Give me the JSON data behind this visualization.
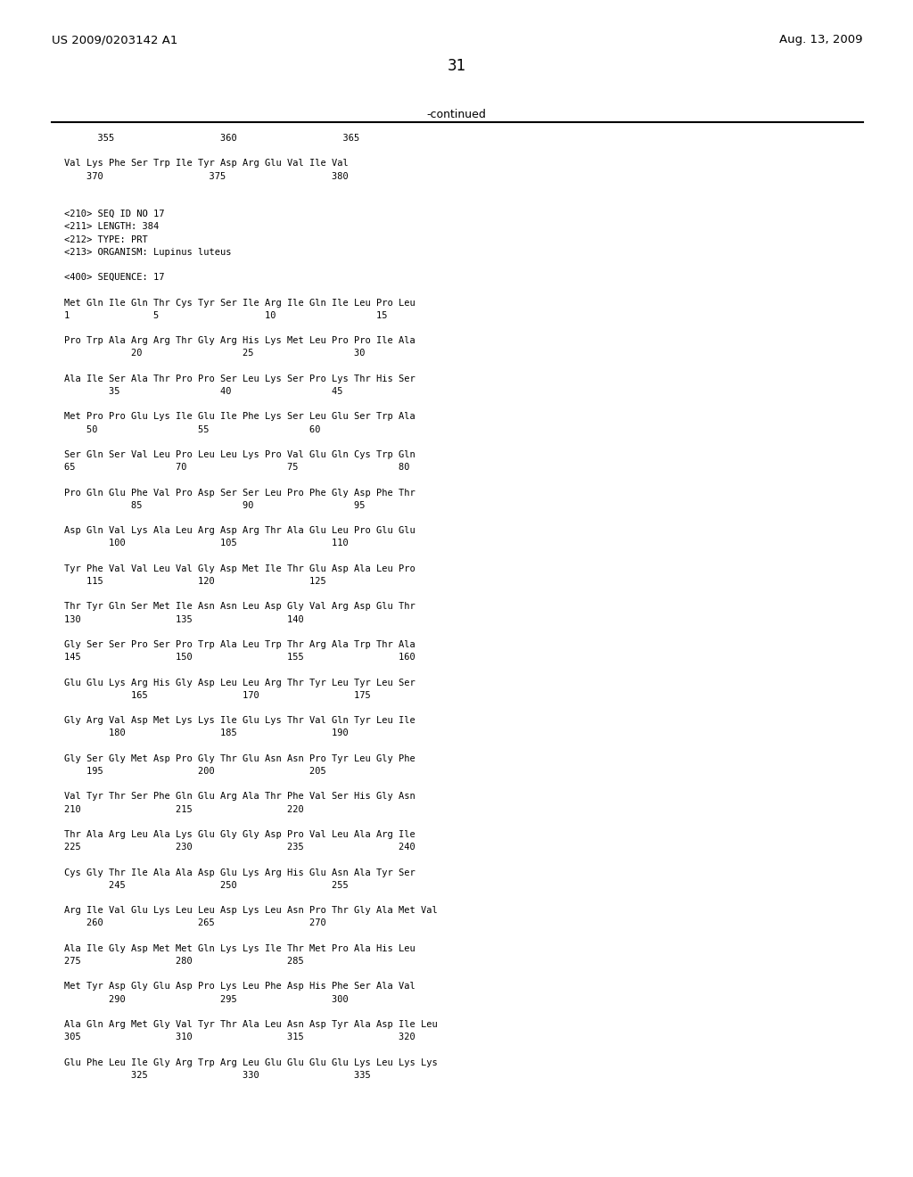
{
  "header_left": "US 2009/0203142 A1",
  "header_right": "Aug. 13, 2009",
  "page_number": "31",
  "continued_label": "-continued",
  "background_color": "#ffffff",
  "text_color": "#000000",
  "lines": [
    "      355                   360                   365",
    "",
    "Val Lys Phe Ser Trp Ile Tyr Asp Arg Glu Val Ile Val",
    "    370                   375                   380",
    "",
    "",
    "<210> SEQ ID NO 17",
    "<211> LENGTH: 384",
    "<212> TYPE: PRT",
    "<213> ORGANISM: Lupinus luteus",
    "",
    "<400> SEQUENCE: 17",
    "",
    "Met Gln Ile Gln Thr Cys Tyr Ser Ile Arg Ile Gln Ile Leu Pro Leu",
    "1               5                   10                  15",
    "",
    "Pro Trp Ala Arg Arg Thr Gly Arg His Lys Met Leu Pro Pro Ile Ala",
    "            20                  25                  30",
    "",
    "Ala Ile Ser Ala Thr Pro Pro Ser Leu Lys Ser Pro Lys Thr His Ser",
    "        35                  40                  45",
    "",
    "Met Pro Pro Glu Lys Ile Glu Ile Phe Lys Ser Leu Glu Ser Trp Ala",
    "    50                  55                  60",
    "",
    "Ser Gln Ser Val Leu Pro Leu Leu Lys Pro Val Glu Gln Cys Trp Gln",
    "65                  70                  75                  80",
    "",
    "Pro Gln Glu Phe Val Pro Asp Ser Ser Leu Pro Phe Gly Asp Phe Thr",
    "            85                  90                  95",
    "",
    "Asp Gln Val Lys Ala Leu Arg Asp Arg Thr Ala Glu Leu Pro Glu Glu",
    "        100                 105                 110",
    "",
    "Tyr Phe Val Val Leu Val Gly Asp Met Ile Thr Glu Asp Ala Leu Pro",
    "    115                 120                 125",
    "",
    "Thr Tyr Gln Ser Met Ile Asn Asn Leu Asp Gly Val Arg Asp Glu Thr",
    "130                 135                 140",
    "",
    "Gly Ser Ser Pro Ser Pro Trp Ala Leu Trp Thr Arg Ala Trp Thr Ala",
    "145                 150                 155                 160",
    "",
    "Glu Glu Lys Arg His Gly Asp Leu Leu Arg Thr Tyr Leu Tyr Leu Ser",
    "            165                 170                 175",
    "",
    "Gly Arg Val Asp Met Lys Lys Ile Glu Lys Thr Val Gln Tyr Leu Ile",
    "        180                 185                 190",
    "",
    "Gly Ser Gly Met Asp Pro Gly Thr Glu Asn Asn Pro Tyr Leu Gly Phe",
    "    195                 200                 205",
    "",
    "Val Tyr Thr Ser Phe Gln Glu Arg Ala Thr Phe Val Ser His Gly Asn",
    "210                 215                 220",
    "",
    "Thr Ala Arg Leu Ala Lys Glu Gly Gly Asp Pro Val Leu Ala Arg Ile",
    "225                 230                 235                 240",
    "",
    "Cys Gly Thr Ile Ala Ala Asp Glu Lys Arg His Glu Asn Ala Tyr Ser",
    "        245                 250                 255",
    "",
    "Arg Ile Val Glu Lys Leu Leu Asp Lys Leu Asn Pro Thr Gly Ala Met Val",
    "    260                 265                 270",
    "",
    "Ala Ile Gly Asp Met Met Gln Lys Lys Ile Thr Met Pro Ala His Leu",
    "275                 280                 285",
    "",
    "Met Tyr Asp Gly Glu Asp Pro Lys Leu Phe Asp His Phe Ser Ala Val",
    "        290                 295                 300",
    "",
    "Ala Gln Arg Met Gly Val Tyr Thr Ala Leu Asn Asp Tyr Ala Asp Ile Leu",
    "305                 310                 315                 320",
    "",
    "Glu Phe Leu Ile Gly Arg Trp Arg Leu Glu Glu Glu Glu Lys Leu Lys Lys",
    "            325                 330                 335"
  ]
}
